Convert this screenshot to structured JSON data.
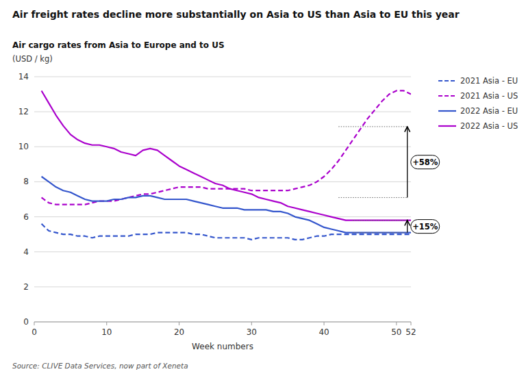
{
  "chart_data": {
    "type": "line",
    "title": "Air freight rates decline more substantially on Asia to US than Asia to EU this year",
    "subtitle": "Air cargo rates from Asia to Europe and to US",
    "ylabel": "(USD / kg)",
    "xlabel": "Week numbers",
    "source": "Source: CLIVE Data Services, now part of Xeneta",
    "xlim": [
      0,
      52
    ],
    "ylim": [
      0,
      14
    ],
    "xticks": [
      0,
      10,
      20,
      30,
      40,
      50,
      52
    ],
    "yticks": [
      0,
      2,
      4,
      6,
      8,
      10,
      12,
      14
    ],
    "grid": true,
    "legend": "right",
    "x": [
      1,
      2,
      3,
      4,
      5,
      6,
      7,
      8,
      9,
      10,
      11,
      12,
      13,
      14,
      15,
      16,
      17,
      18,
      19,
      20,
      21,
      22,
      23,
      24,
      25,
      26,
      27,
      28,
      29,
      30,
      31,
      32,
      33,
      34,
      35,
      36,
      37,
      38,
      39,
      40,
      41,
      42,
      43,
      44,
      45,
      46,
      47,
      48,
      49,
      50,
      51,
      52
    ],
    "series": [
      {
        "name": "2021 Asia - EU",
        "color": "#3355cc",
        "line_style": "dashed",
        "values": [
          5.6,
          5.2,
          5.1,
          5.0,
          5.0,
          4.9,
          4.9,
          4.8,
          4.9,
          4.9,
          4.9,
          4.9,
          4.9,
          5.0,
          5.0,
          5.0,
          5.1,
          5.1,
          5.1,
          5.1,
          5.1,
          5.0,
          5.0,
          4.9,
          4.8,
          4.8,
          4.8,
          4.8,
          4.8,
          4.7,
          4.8,
          4.8,
          4.8,
          4.8,
          4.8,
          4.7,
          4.7,
          4.8,
          4.9,
          4.9,
          5.0,
          5.0,
          5.0,
          5.0,
          5.0,
          5.0,
          5.0,
          5.0,
          5.0,
          5.0,
          5.0,
          5.0
        ]
      },
      {
        "name": "2021 Asia - US",
        "color": "#aa00cc",
        "line_style": "dashed",
        "values": [
          7.1,
          6.8,
          6.7,
          6.7,
          6.7,
          6.7,
          6.7,
          6.8,
          6.9,
          6.9,
          6.9,
          7.0,
          7.1,
          7.2,
          7.3,
          7.3,
          7.4,
          7.5,
          7.6,
          7.7,
          7.7,
          7.7,
          7.7,
          7.6,
          7.6,
          7.6,
          7.6,
          7.6,
          7.6,
          7.5,
          7.5,
          7.5,
          7.5,
          7.5,
          7.5,
          7.6,
          7.7,
          7.8,
          8.0,
          8.3,
          8.7,
          9.2,
          9.8,
          10.4,
          11.0,
          11.6,
          12.1,
          12.6,
          13.0,
          13.2,
          13.2,
          13.0
        ]
      },
      {
        "name": "2022 Asia - EU",
        "color": "#3355cc",
        "line_style": "solid",
        "values": [
          8.3,
          8.0,
          7.7,
          7.5,
          7.4,
          7.2,
          7.0,
          6.9,
          6.9,
          6.9,
          7.0,
          7.0,
          7.1,
          7.1,
          7.2,
          7.2,
          7.1,
          7.0,
          7.0,
          7.0,
          7.0,
          6.9,
          6.8,
          6.7,
          6.6,
          6.5,
          6.5,
          6.5,
          6.4,
          6.4,
          6.4,
          6.4,
          6.3,
          6.3,
          6.2,
          6.0,
          5.9,
          5.8,
          5.6,
          5.4,
          5.3,
          5.2,
          5.1,
          5.1,
          5.1,
          5.1,
          5.1,
          5.1,
          5.1,
          5.1,
          5.1,
          5.1
        ]
      },
      {
        "name": "2022 Asia - US",
        "color": "#aa00cc",
        "line_style": "solid",
        "values": [
          13.2,
          12.5,
          11.8,
          11.2,
          10.7,
          10.4,
          10.2,
          10.1,
          10.1,
          10.0,
          9.9,
          9.7,
          9.6,
          9.5,
          9.8,
          9.9,
          9.8,
          9.5,
          9.2,
          8.9,
          8.7,
          8.5,
          8.3,
          8.1,
          7.9,
          7.8,
          7.6,
          7.5,
          7.4,
          7.3,
          7.1,
          7.0,
          6.9,
          6.8,
          6.6,
          6.5,
          6.4,
          6.3,
          6.2,
          6.1,
          6.0,
          5.9,
          5.8,
          5.8,
          5.8,
          5.8,
          5.8,
          5.8,
          5.8,
          5.8,
          5.8,
          5.8
        ]
      }
    ],
    "annotations": [
      {
        "text": "+58%",
        "x": 51.5,
        "x_start": 42,
        "y_bottom": 7.1,
        "y_top": 11.15
      },
      {
        "text": "+15%",
        "x": 51.5,
        "x_start": 44,
        "y_bottom": 5.1,
        "y_top": 5.8
      }
    ]
  }
}
